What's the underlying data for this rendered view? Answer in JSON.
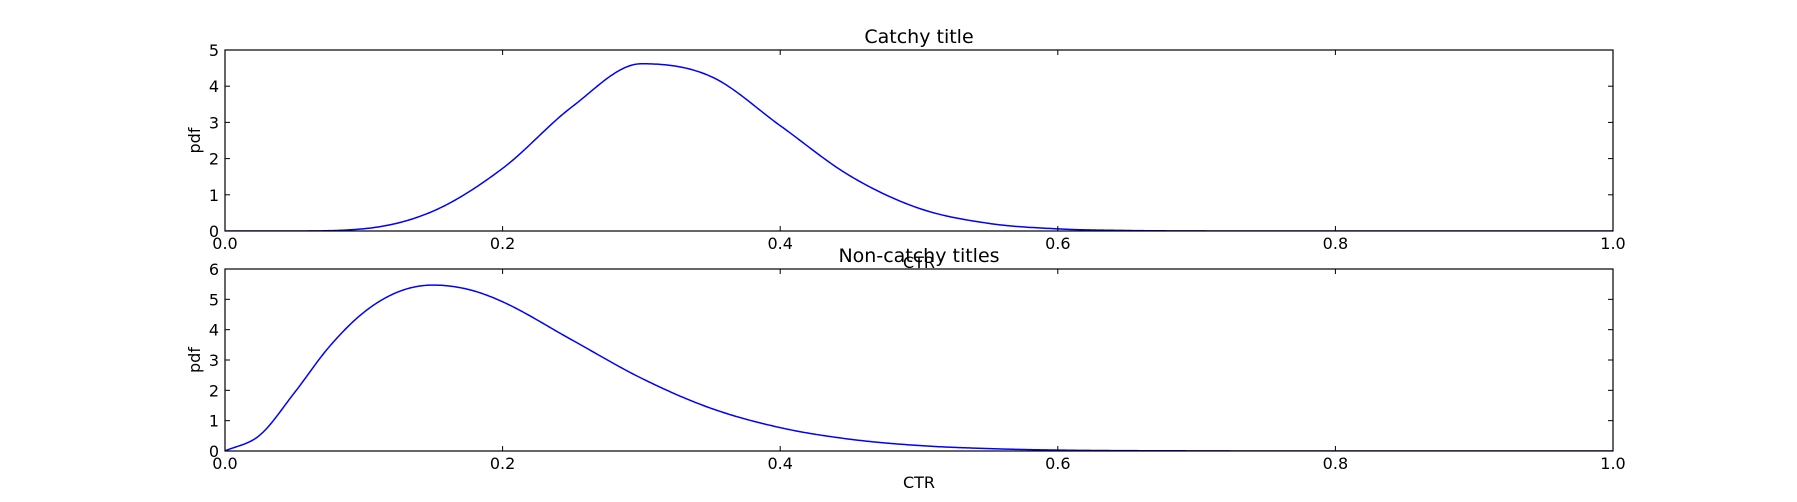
{
  "chart_data": [
    {
      "type": "line",
      "title": "Catchy title",
      "xlabel": "CTR",
      "ylabel": "pdf",
      "xlim": [
        0.0,
        1.0
      ],
      "ylim": [
        0,
        5
      ],
      "x_ticks": [
        "0.0",
        "0.2",
        "0.4",
        "0.6",
        "0.8",
        "1.0"
      ],
      "y_ticks": [
        "0",
        "1",
        "2",
        "3",
        "4",
        "5"
      ],
      "grid": false,
      "line_color": "#0000ff",
      "x": [
        0.0,
        0.05,
        0.1,
        0.15,
        0.2,
        0.25,
        0.3,
        0.35,
        0.4,
        0.45,
        0.5,
        0.55,
        0.6,
        0.65,
        0.7,
        0.75,
        0.8,
        0.85,
        0.9,
        0.95,
        1.0
      ],
      "y": [
        0.0,
        0.001,
        0.062,
        0.55,
        1.73,
        3.43,
        4.62,
        4.27,
        2.91,
        1.53,
        0.627,
        0.212,
        0.059,
        0.014,
        0.0025,
        0.0004,
        0.0,
        0.0,
        0.0,
        0.0,
        0.0
      ]
    },
    {
      "type": "line",
      "title": "Non-catchy titles",
      "xlabel": "CTR",
      "ylabel": "pdf",
      "xlim": [
        0.0,
        1.0
      ],
      "ylim": [
        0,
        6
      ],
      "x_ticks": [
        "0.0",
        "0.2",
        "0.4",
        "0.6",
        "0.8",
        "1.0"
      ],
      "y_ticks": [
        "0",
        "1",
        "2",
        "3",
        "4",
        "5",
        "6"
      ],
      "grid": false,
      "line_color": "#0000ff",
      "x": [
        0.0,
        0.025,
        0.05,
        0.075,
        0.1,
        0.125,
        0.15,
        0.175,
        0.2,
        0.25,
        0.3,
        0.35,
        0.4,
        0.45,
        0.5,
        0.55,
        0.6,
        0.7,
        0.8,
        0.9,
        1.0
      ],
      "y": [
        0.0,
        0.52,
        1.92,
        3.43,
        4.57,
        5.25,
        5.47,
        5.33,
        4.92,
        3.66,
        2.4,
        1.41,
        0.77,
        0.39,
        0.18,
        0.08,
        0.03,
        0.005,
        0.0,
        0.0,
        0.0
      ]
    }
  ]
}
